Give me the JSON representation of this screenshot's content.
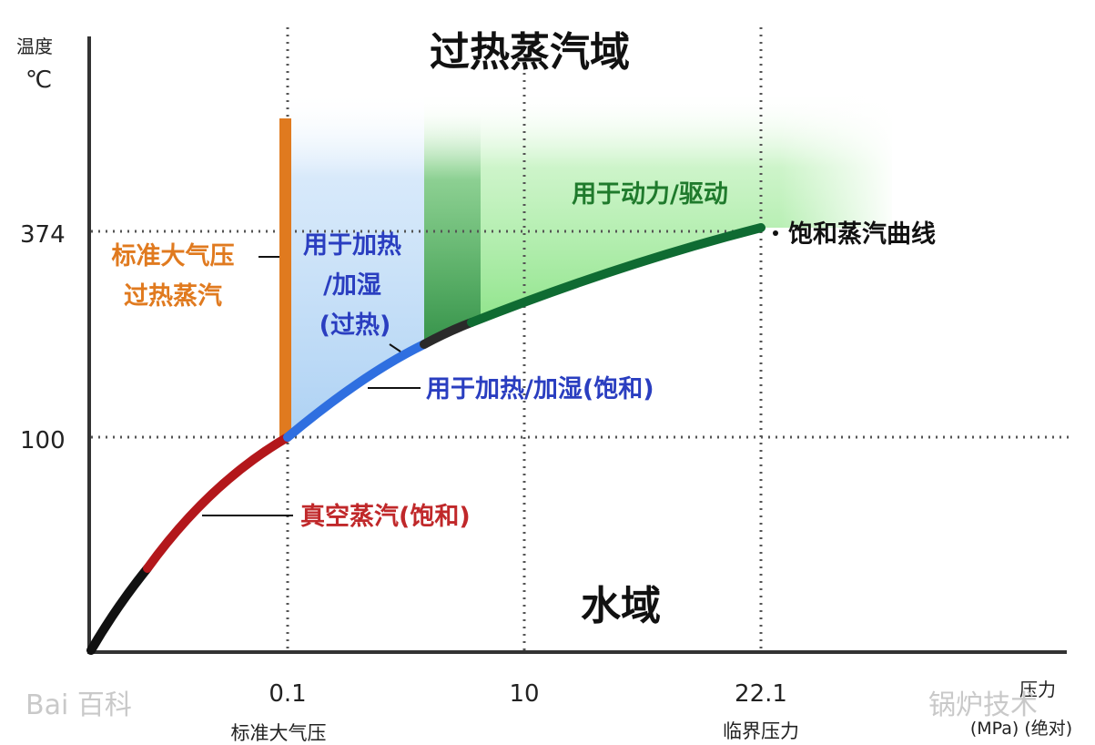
{
  "axis": {
    "y_label_line1": "温度",
    "y_label_line2": "℃",
    "x_label_line1": "压力",
    "x_label_line2": "(MPa) (绝对)",
    "y_ticks": [
      "374",
      "100"
    ],
    "x_ticks": [
      {
        "value": "0.1",
        "caption": "标准大气压"
      },
      {
        "value": "10",
        "caption": ""
      },
      {
        "value": "22.1",
        "caption": "临界压力"
      }
    ]
  },
  "regions": {
    "superheated": "过热蒸汽域",
    "water": "水域"
  },
  "labels": {
    "atm_superheated_line1": "标准大气压",
    "atm_superheated_line2": "过热蒸汽",
    "heat_humid_superheat_line1": "用于加热",
    "heat_humid_superheat_line2": "/加湿",
    "heat_humid_superheat_line3": "(过热)",
    "power_drive": "用于动力/驱动",
    "saturation_curve": "饱和蒸汽曲线",
    "heat_humid_saturated": "用于加热/加湿(饱和)",
    "vacuum_steam": "真空蒸汽(饱和)"
  },
  "watermarks": {
    "left": "Bai 百科",
    "right": "锅炉技术"
  },
  "colors": {
    "orange": "#e07a1f",
    "blue_text": "#2a3ec0",
    "green_text": "#1f7a2c",
    "red_text": "#c0282a",
    "curve_black": "#111111",
    "curve_red": "#b3171b",
    "curve_blue": "#2f6fe0",
    "curve_green": "#0f6b32",
    "fill_blue": "#a9cff3",
    "fill_green": "#7fe07a",
    "fill_dark_green": "#2e8a45"
  }
}
